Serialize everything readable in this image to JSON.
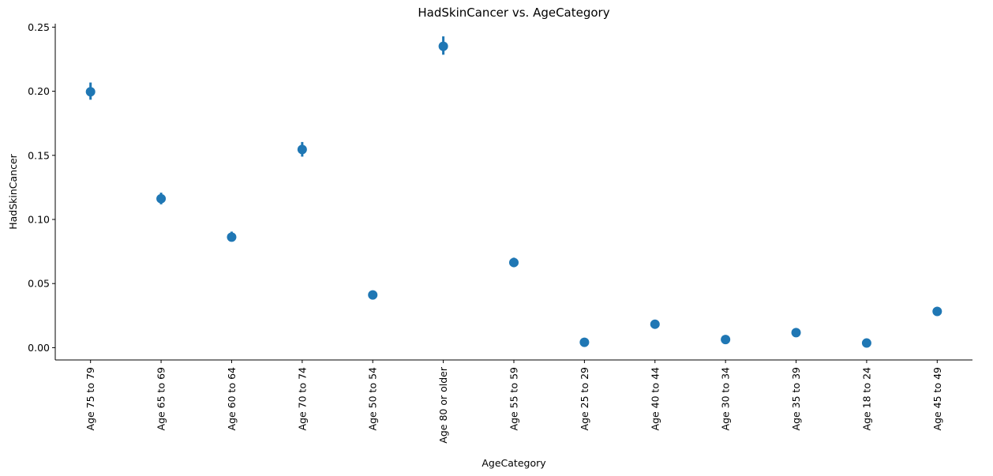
{
  "chart_data": {
    "type": "scatter",
    "title": "HadSkinCancer vs. AgeCategory",
    "xlabel": "AgeCategory",
    "ylabel": "HadSkinCancer",
    "categories": [
      "Age 75 to 79",
      "Age 65 to 69",
      "Age 60 to 64",
      "Age 70 to 74",
      "Age 50 to 54",
      "Age 80 or older",
      "Age 55 to 59",
      "Age 25 to 29",
      "Age 40 to 44",
      "Age 30 to 34",
      "Age 35 to 39",
      "Age 18 to 24",
      "Age 45 to 49"
    ],
    "values": [
      0.1996,
      0.1162,
      0.0862,
      0.1546,
      0.0411,
      0.2351,
      0.0664,
      0.0042,
      0.0183,
      0.0063,
      0.0117,
      0.0036,
      0.0283
    ],
    "ci_low": [
      0.1934,
      0.1118,
      0.083,
      0.149,
      0.0384,
      0.2285,
      0.0632,
      0.0032,
      0.0168,
      0.0051,
      0.0103,
      0.0027,
      0.0264
    ],
    "ci_high": [
      0.2068,
      0.1209,
      0.0905,
      0.1604,
      0.0441,
      0.2428,
      0.0702,
      0.0053,
      0.02,
      0.0076,
      0.0133,
      0.0046,
      0.0305
    ],
    "yticks": [
      "0.00",
      "0.05",
      "0.10",
      "0.15",
      "0.20",
      "0.25"
    ],
    "ylim": [
      -0.0096,
      0.2527
    ],
    "grid": false,
    "legend": "none",
    "color": "#1f77b4",
    "tick_label_rotation_deg": 90
  }
}
